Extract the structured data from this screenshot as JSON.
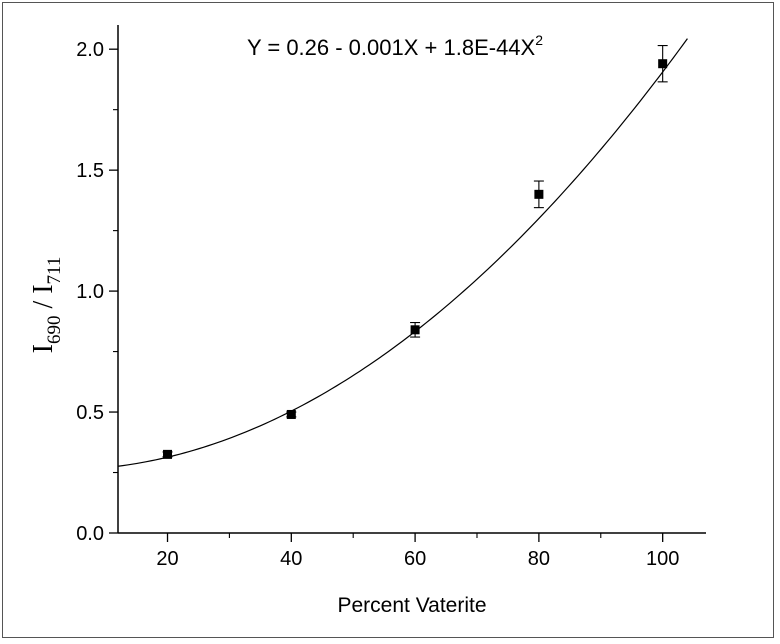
{
  "chart_data": {
    "type": "scatter",
    "title": "",
    "equation": {
      "prefix": "Y = 0.26 - 0.001X + 1.8E-44X",
      "superscript": "2"
    },
    "xlabel": "Percent Vaterite",
    "ylabel": {
      "I_main": "I",
      "sub_690": "690",
      "slash": " / ",
      "I_main2": "I",
      "sub_711": "711"
    },
    "xlim": [
      12,
      107
    ],
    "ylim": [
      0.0,
      2.1
    ],
    "x_ticks": [
      20,
      40,
      60,
      80,
      100
    ],
    "x_tick_labels": [
      "20",
      "40",
      "60",
      "80",
      "100"
    ],
    "y_ticks": [
      0.0,
      0.5,
      1.0,
      1.5,
      2.0
    ],
    "y_tick_labels": [
      "0.0",
      "0.5",
      "1.0",
      "1.5",
      "2.0"
    ],
    "grid": false,
    "series": [
      {
        "x": [
          20,
          40,
          60,
          80,
          100
        ],
        "y": [
          0.325,
          0.49,
          0.84,
          1.4,
          1.94
        ],
        "error": [
          0.01,
          0.01,
          0.03,
          0.055,
          0.075
        ],
        "marker": "square"
      }
    ],
    "fit": {
      "type": "quadratic",
      "x_range": [
        12,
        104
      ],
      "x": [
        12,
        20,
        30,
        40,
        50,
        60,
        70,
        80,
        90,
        100,
        104
      ],
      "y": [
        0.278,
        0.32,
        0.39,
        0.49,
        0.645,
        0.835,
        1.055,
        1.31,
        1.59,
        1.9,
        2.04
      ]
    }
  }
}
